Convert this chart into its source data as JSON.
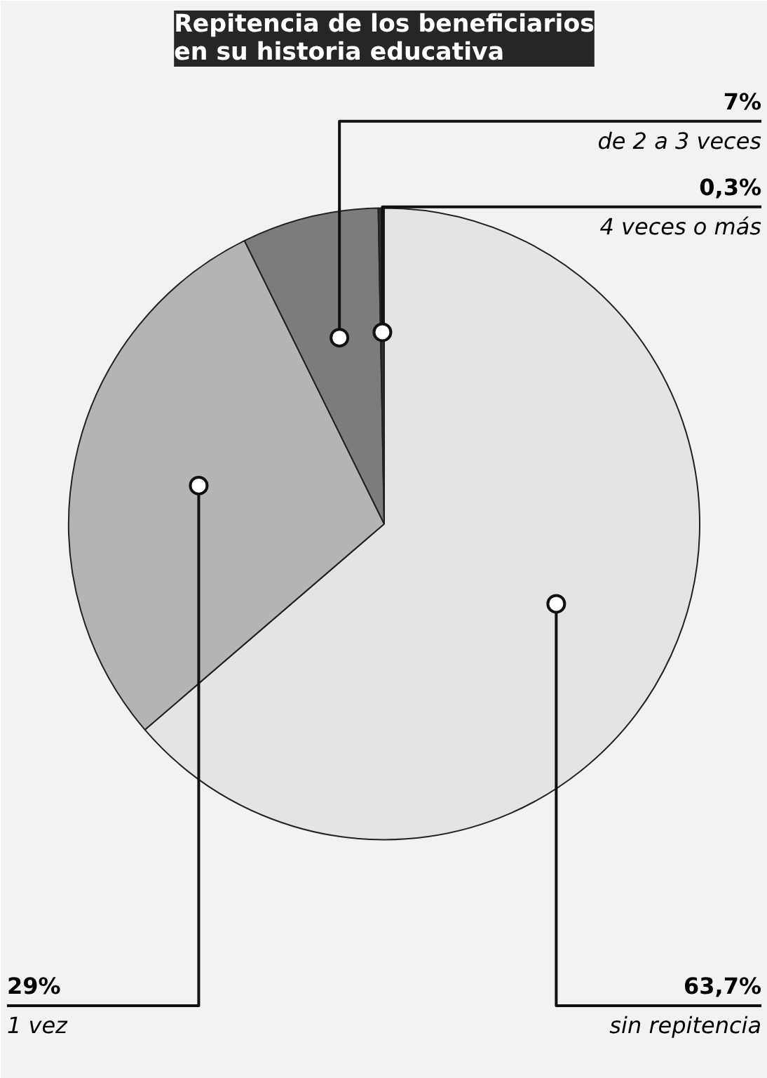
{
  "chart_data": {
    "type": "pie",
    "title": "Repitencia de los beneficiarios\nen su historia educativa",
    "categories": [
      "sin repitencia",
      "1 vez",
      "de 2 a 3 veces",
      "4 veces o más"
    ],
    "values": [
      63.7,
      29,
      7,
      0.3
    ],
    "value_labels": [
      "63,7%",
      "29%",
      "7%",
      "0,3%"
    ],
    "colors": [
      "#e4e4e2",
      "#b4b4b2",
      "#7c7c7a",
      "#2e2e2e"
    ]
  }
}
